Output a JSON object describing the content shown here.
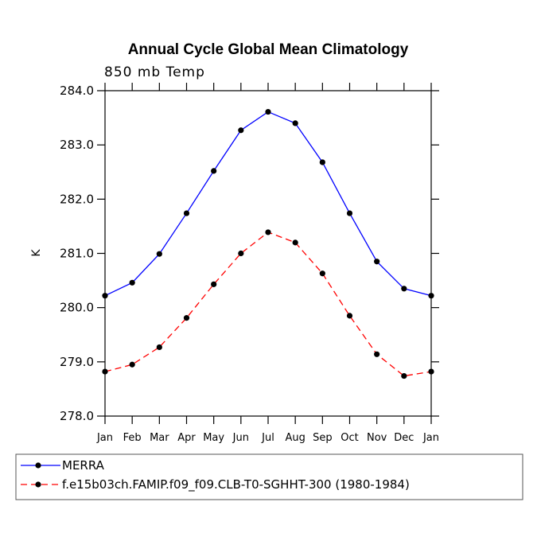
{
  "chart_data": {
    "type": "line",
    "title": "Annual Cycle Global Mean Climatology",
    "subtitle": "850 mb Temp",
    "xlabel": "",
    "ylabel": "K",
    "categories": [
      "Jan",
      "Feb",
      "Mar",
      "Apr",
      "May",
      "Jun",
      "Jul",
      "Aug",
      "Sep",
      "Oct",
      "Nov",
      "Dec",
      "Jan"
    ],
    "ylim": [
      278.0,
      284.0
    ],
    "yticks": [
      "278.0",
      "279.0",
      "280.0",
      "281.0",
      "282.0",
      "283.0",
      "284.0"
    ],
    "grid": false,
    "legend_position": "bottom-left",
    "series": [
      {
        "name": "MERRA",
        "color": "#0000ff",
        "dash": "solid",
        "values": [
          280.22,
          280.46,
          280.99,
          281.74,
          282.52,
          283.27,
          283.61,
          283.4,
          282.68,
          281.74,
          280.85,
          280.35,
          280.22
        ]
      },
      {
        "name": "f.e15b03ch.FAMIP.f09_f09.CLB-T0-SGHHT-300 (1980-1984)",
        "color": "#ff0000",
        "dash": "dashed",
        "values": [
          278.82,
          278.95,
          279.27,
          279.81,
          280.43,
          281.0,
          281.39,
          281.2,
          280.63,
          279.85,
          279.14,
          278.74,
          278.82
        ]
      }
    ]
  }
}
